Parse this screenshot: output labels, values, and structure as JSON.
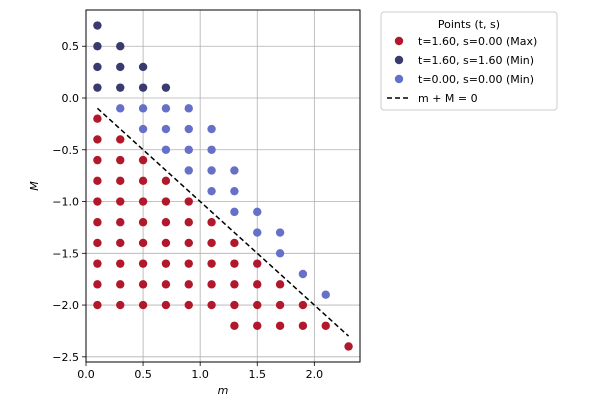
{
  "chart_data": {
    "type": "scatter",
    "title": "",
    "xlabel": "m",
    "ylabel": "M",
    "xlim": [
      0.0,
      2.4
    ],
    "ylim": [
      -2.55,
      0.85
    ],
    "xticks": [
      0.0,
      0.5,
      1.0,
      1.5,
      2.0
    ],
    "xtick_labels": [
      "0.0",
      "0.5",
      "1.0",
      "1.5",
      "2.0"
    ],
    "yticks": [
      -2.5,
      -2.0,
      -1.5,
      -1.0,
      -0.5,
      0.0,
      0.5
    ],
    "ytick_labels": [
      "−2.5",
      "−2.0",
      "−1.5",
      "−1.0",
      "−0.5",
      "0.0",
      "0.5"
    ],
    "grid": true,
    "legend": {
      "title": "Points (t, s)",
      "placement": "outside-upper-right"
    },
    "series": [
      {
        "name": "t=1.60, s=0.00 (Max)",
        "color": "#b2182b",
        "points": [
          [
            0.1,
            -0.2
          ],
          [
            0.1,
            -0.4
          ],
          [
            0.1,
            -0.6
          ],
          [
            0.1,
            -0.8
          ],
          [
            0.1,
            -1.0
          ],
          [
            0.1,
            -1.2
          ],
          [
            0.1,
            -1.4
          ],
          [
            0.1,
            -1.6
          ],
          [
            0.1,
            -1.8
          ],
          [
            0.1,
            -2.0
          ],
          [
            0.3,
            -0.4
          ],
          [
            0.3,
            -0.6
          ],
          [
            0.3,
            -0.8
          ],
          [
            0.3,
            -1.0
          ],
          [
            0.3,
            -1.2
          ],
          [
            0.3,
            -1.4
          ],
          [
            0.3,
            -1.6
          ],
          [
            0.3,
            -1.8
          ],
          [
            0.3,
            -2.0
          ],
          [
            0.5,
            -0.6
          ],
          [
            0.5,
            -0.8
          ],
          [
            0.5,
            -1.0
          ],
          [
            0.5,
            -1.2
          ],
          [
            0.5,
            -1.4
          ],
          [
            0.5,
            -1.6
          ],
          [
            0.5,
            -1.8
          ],
          [
            0.5,
            -2.0
          ],
          [
            0.7,
            -0.8
          ],
          [
            0.7,
            -1.0
          ],
          [
            0.7,
            -1.2
          ],
          [
            0.7,
            -1.4
          ],
          [
            0.7,
            -1.6
          ],
          [
            0.7,
            -1.8
          ],
          [
            0.7,
            -2.0
          ],
          [
            0.9,
            -1.0
          ],
          [
            0.9,
            -1.2
          ],
          [
            0.9,
            -1.4
          ],
          [
            0.9,
            -1.6
          ],
          [
            0.9,
            -1.8
          ],
          [
            0.9,
            -2.0
          ],
          [
            1.1,
            -1.2
          ],
          [
            1.1,
            -1.4
          ],
          [
            1.1,
            -1.6
          ],
          [
            1.1,
            -1.8
          ],
          [
            1.1,
            -2.0
          ],
          [
            1.3,
            -1.4
          ],
          [
            1.3,
            -1.6
          ],
          [
            1.3,
            -1.8
          ],
          [
            1.3,
            -2.0
          ],
          [
            1.3,
            -2.2
          ],
          [
            1.5,
            -1.6
          ],
          [
            1.5,
            -1.8
          ],
          [
            1.5,
            -2.0
          ],
          [
            1.5,
            -2.2
          ],
          [
            1.7,
            -1.8
          ],
          [
            1.7,
            -2.0
          ],
          [
            1.7,
            -2.2
          ],
          [
            1.9,
            -2.0
          ],
          [
            1.9,
            -2.2
          ],
          [
            2.1,
            -2.2
          ],
          [
            2.3,
            -2.4
          ]
        ]
      },
      {
        "name": "t=1.60, s=1.60 (Min)",
        "color": "#3a3a6e",
        "points": [
          [
            0.1,
            0.7
          ],
          [
            0.1,
            0.5
          ],
          [
            0.1,
            0.3
          ],
          [
            0.1,
            0.1
          ],
          [
            0.3,
            0.5
          ],
          [
            0.3,
            0.3
          ],
          [
            0.3,
            0.1
          ],
          [
            0.5,
            0.3
          ],
          [
            0.5,
            0.1
          ],
          [
            0.7,
            0.1
          ]
        ]
      },
      {
        "name": "t=0.00, s=0.00 (Min)",
        "color": "#6670c8",
        "points": [
          [
            0.3,
            -0.1
          ],
          [
            0.5,
            -0.1
          ],
          [
            0.5,
            -0.3
          ],
          [
            0.7,
            -0.1
          ],
          [
            0.7,
            -0.3
          ],
          [
            0.7,
            -0.5
          ],
          [
            0.9,
            -0.1
          ],
          [
            0.9,
            -0.3
          ],
          [
            0.9,
            -0.5
          ],
          [
            0.9,
            -0.7
          ],
          [
            1.1,
            -0.3
          ],
          [
            1.1,
            -0.5
          ],
          [
            1.1,
            -0.7
          ],
          [
            1.1,
            -0.9
          ],
          [
            1.3,
            -0.7
          ],
          [
            1.3,
            -0.9
          ],
          [
            1.3,
            -1.1
          ],
          [
            1.5,
            -1.1
          ],
          [
            1.5,
            -1.3
          ],
          [
            1.7,
            -1.3
          ],
          [
            1.7,
            -1.5
          ],
          [
            1.9,
            -1.7
          ],
          [
            2.1,
            -1.9
          ]
        ]
      }
    ],
    "reference_line": {
      "name": "m  + M = 0",
      "style": "dashed",
      "color": "#000000",
      "points": [
        [
          0.1,
          -0.1
        ],
        [
          2.3,
          -2.3
        ]
      ]
    }
  }
}
